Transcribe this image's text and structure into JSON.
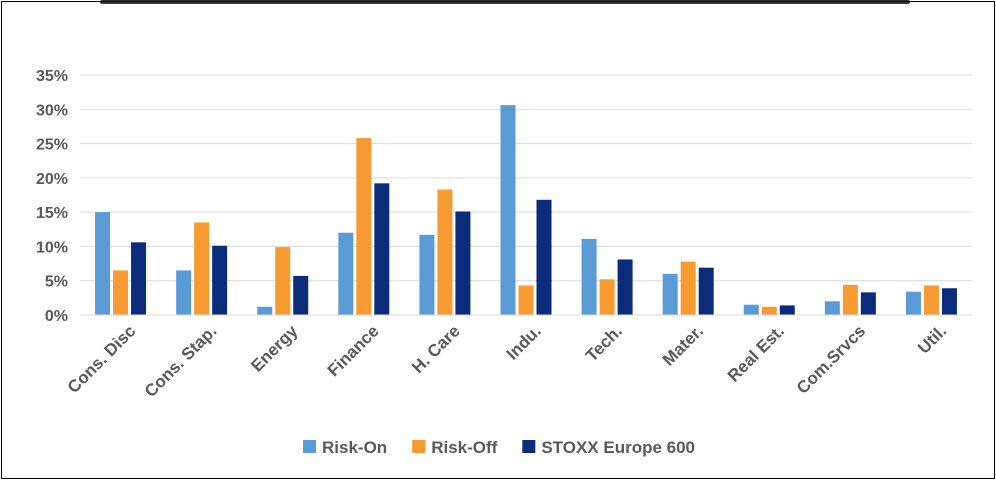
{
  "chart_data": {
    "type": "bar",
    "categories": [
      "Cons. Disc",
      "Cons. Stap.",
      "Energy",
      "Finance",
      "H. Care",
      "Indu.",
      "Tech.",
      "Mater.",
      "Real Est.",
      "Com.Srvcs",
      "Util."
    ],
    "series": [
      {
        "name": "Risk-On",
        "color": "#5B9BD5",
        "values": [
          15.0,
          6.5,
          1.2,
          12.0,
          11.7,
          30.6,
          11.1,
          6.0,
          1.5,
          2.0,
          3.4
        ]
      },
      {
        "name": "Risk-Off",
        "color": "#F79A32",
        "values": [
          6.5,
          13.5,
          9.9,
          25.8,
          18.3,
          4.3,
          5.2,
          7.8,
          1.2,
          4.4,
          4.3
        ]
      },
      {
        "name": "STOXX Europe 600",
        "color": "#0A2C7A",
        "values": [
          10.6,
          10.1,
          5.7,
          19.2,
          15.1,
          16.8,
          8.1,
          6.9,
          1.4,
          3.3,
          3.9
        ]
      }
    ],
    "yticks": [
      "0%",
      "5%",
      "10%",
      "15%",
      "20%",
      "25%",
      "30%",
      "35%"
    ],
    "ylim": [
      0,
      35
    ],
    "grid": true,
    "legend": "bottom"
  }
}
